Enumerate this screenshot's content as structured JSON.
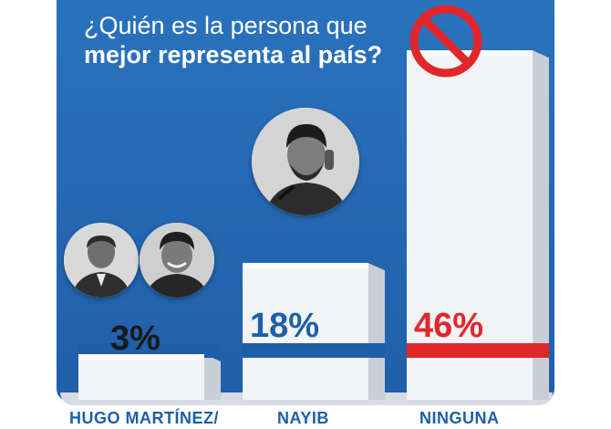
{
  "question": {
    "line1": "¿Quién es la persona que",
    "line2": "mejor representa al país?"
  },
  "colors": {
    "panel_blue": "#2a72bd",
    "accent_blue": "#1d5fa8",
    "accent_red": "#e1262c",
    "bar_white": "#f2f3f5"
  },
  "icons": {
    "ninguna": "prohibited-sign-icon"
  },
  "chart_data": {
    "type": "bar",
    "categories": [
      "HUGO MARTÍNEZ/",
      "NAYIB",
      "NINGUNA"
    ],
    "values": [
      3,
      18,
      46
    ],
    "value_labels": [
      "3%",
      "18%",
      "46%"
    ],
    "value_colors": [
      "#1a1a1a",
      "#1d5fa8",
      "#e1262c"
    ],
    "ylim": [
      0,
      50
    ]
  }
}
